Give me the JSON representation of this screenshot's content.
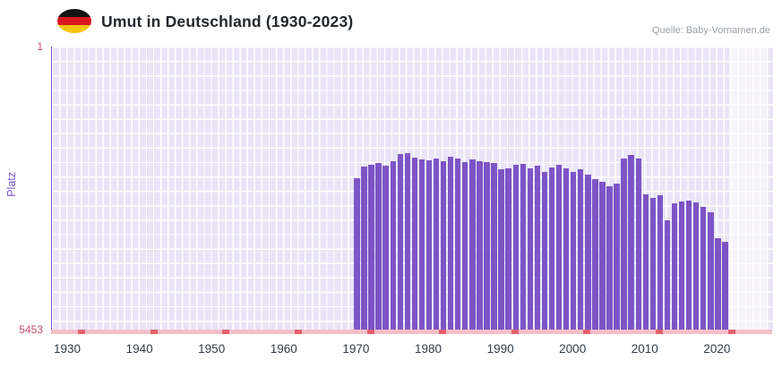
{
  "header": {
    "title": "Umut in Deutschland (1930-2023)",
    "source": "Quelle: Baby-Vornamen.de",
    "flag": "germany"
  },
  "colors": {
    "bar": "#7d54c6",
    "plot_background": "#eae4f6",
    "grid_line": "#ffffff",
    "y_axis_line": "#7d54c6",
    "x_axis_line": "#f3bfc7",
    "x_axis_tick": "#e4606d",
    "y_tick_label": "#c94d6d",
    "x_tick_label": "#2e3d49",
    "y_axis_title": "#7b52c7",
    "flag": [
      "#141414",
      "#d8171f",
      "#f5c60c"
    ]
  },
  "chart_data": {
    "type": "bar",
    "title": "Umut in Deutschland (1930-2023)",
    "xlabel": "",
    "ylabel": "Platz",
    "grid": true,
    "legend": "none",
    "yaxis": {
      "min": 1,
      "max": 5453,
      "inverted": true,
      "top_tick_label": "1",
      "bottom_tick_label": "5453"
    },
    "xaxis": {
      "min": 1930,
      "max": 2023,
      "tick_labels": [
        "1930",
        "1940",
        "1950",
        "1960",
        "1970",
        "1980",
        "1990",
        "2000",
        "2010",
        "2020"
      ],
      "minor_tick_years": [
        1932,
        1942,
        1952,
        1962,
        1972,
        1982,
        1992,
        2002,
        2012,
        2022
      ]
    },
    "no_data_band": {
      "from": 2022,
      "to": 2023
    },
    "bar_color": "#7d54c6",
    "series": [
      {
        "name": "Platz",
        "years": [
          1970,
          1971,
          1972,
          1973,
          1974,
          1975,
          1976,
          1977,
          1978,
          1979,
          1980,
          1981,
          1982,
          1983,
          1984,
          1985,
          1986,
          1987,
          1988,
          1989,
          1990,
          1991,
          1992,
          1993,
          1994,
          1995,
          1996,
          1997,
          1998,
          1999,
          2000,
          2001,
          2002,
          2003,
          2004,
          2005,
          2006,
          2007,
          2008,
          2009,
          2010,
          2011,
          2012,
          2013,
          2014,
          2015,
          2016,
          2017,
          2018,
          2019,
          2020,
          2021
        ],
        "ranks": [
          2530,
          2320,
          2270,
          2240,
          2290,
          2210,
          2070,
          2050,
          2140,
          2170,
          2190,
          2160,
          2200,
          2120,
          2150,
          2220,
          2170,
          2200,
          2230,
          2250,
          2370,
          2340,
          2280,
          2260,
          2350,
          2300,
          2420,
          2330,
          2270,
          2340,
          2410,
          2370,
          2460,
          2550,
          2610,
          2690,
          2640,
          2150,
          2080,
          2160,
          2840,
          2910,
          2870,
          3340,
          3020,
          2980,
          2960,
          3010,
          3080,
          3200,
          3700,
          3760
        ]
      }
    ]
  }
}
